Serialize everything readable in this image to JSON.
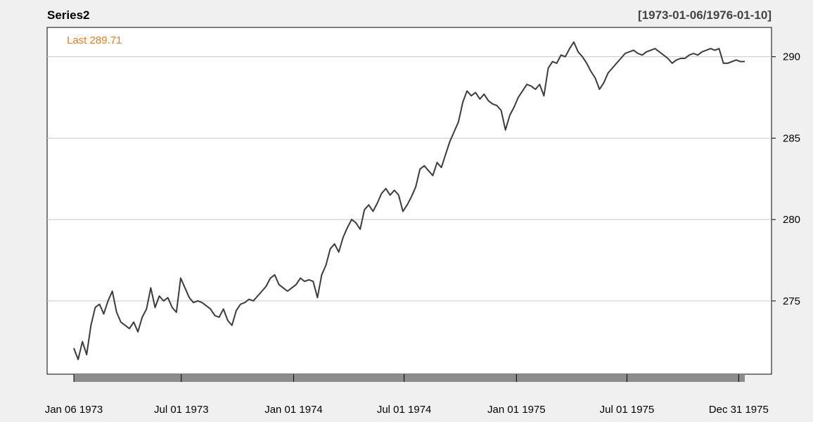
{
  "chart_data": {
    "type": "line",
    "title": "Series2",
    "date_range_label": "[1973-01-06/1976-01-10]",
    "last_label": "Last 289.71",
    "x_range": [
      "1973-01-06",
      "1976-01-10"
    ],
    "ylim": [
      270.5,
      291.8
    ],
    "yticks": [
      275,
      280,
      285,
      290
    ],
    "xticks": [
      {
        "date": "1973-01-06",
        "label": "Jan 06 1973"
      },
      {
        "date": "1973-07-01",
        "label": "Jul 01 1973"
      },
      {
        "date": "1974-01-01",
        "label": "Jan 01 1974"
      },
      {
        "date": "1974-07-01",
        "label": "Jul 01 1974"
      },
      {
        "date": "1975-01-01",
        "label": "Jan 01 1975"
      },
      {
        "date": "1975-07-01",
        "label": "Jul 01 1975"
      },
      {
        "date": "1975-12-31",
        "label": "Dec 31 1975"
      }
    ],
    "grid": "horizontal",
    "colors": {
      "line": "#3c3c3c",
      "last": "#e67e22",
      "grid": "#c8c8c8",
      "bar": "#8c8c8c"
    },
    "series": [
      {
        "values": [
          [
            "1973-01-06",
            272.1
          ],
          [
            "1973-01-13",
            271.4
          ],
          [
            "1973-01-20",
            272.5
          ],
          [
            "1973-01-27",
            271.7
          ],
          [
            "1973-02-03",
            273.5
          ],
          [
            "1973-02-10",
            274.6
          ],
          [
            "1973-02-17",
            274.8
          ],
          [
            "1973-02-24",
            274.2
          ],
          [
            "1973-03-03",
            275.0
          ],
          [
            "1973-03-10",
            275.6
          ],
          [
            "1973-03-17",
            274.3
          ],
          [
            "1973-03-24",
            273.7
          ],
          [
            "1973-03-31",
            273.5
          ],
          [
            "1973-04-07",
            273.3
          ],
          [
            "1973-04-14",
            273.7
          ],
          [
            "1973-04-21",
            273.1
          ],
          [
            "1973-04-28",
            274.0
          ],
          [
            "1973-05-05",
            274.5
          ],
          [
            "1973-05-12",
            275.8
          ],
          [
            "1973-05-19",
            274.6
          ],
          [
            "1973-05-26",
            275.3
          ],
          [
            "1973-06-02",
            275.0
          ],
          [
            "1973-06-09",
            275.2
          ],
          [
            "1973-06-16",
            274.6
          ],
          [
            "1973-06-23",
            274.3
          ],
          [
            "1973-06-30",
            276.4
          ],
          [
            "1973-07-07",
            275.8
          ],
          [
            "1973-07-14",
            275.2
          ],
          [
            "1973-07-21",
            274.9
          ],
          [
            "1973-07-28",
            275.0
          ],
          [
            "1973-08-04",
            274.9
          ],
          [
            "1973-08-11",
            274.7
          ],
          [
            "1973-08-18",
            274.5
          ],
          [
            "1973-08-25",
            274.1
          ],
          [
            "1973-09-01",
            274.0
          ],
          [
            "1973-09-08",
            274.5
          ],
          [
            "1973-09-15",
            273.8
          ],
          [
            "1973-09-22",
            273.5
          ],
          [
            "1973-09-29",
            274.4
          ],
          [
            "1973-10-06",
            274.8
          ],
          [
            "1973-10-13",
            274.9
          ],
          [
            "1973-10-20",
            275.1
          ],
          [
            "1973-10-27",
            275.0
          ],
          [
            "1973-11-03",
            275.3
          ],
          [
            "1973-11-10",
            275.6
          ],
          [
            "1973-11-17",
            275.9
          ],
          [
            "1973-11-24",
            276.4
          ],
          [
            "1973-12-01",
            276.6
          ],
          [
            "1973-12-08",
            276.0
          ],
          [
            "1973-12-15",
            275.8
          ],
          [
            "1973-12-22",
            275.6
          ],
          [
            "1973-12-29",
            275.8
          ],
          [
            "1974-01-05",
            276.0
          ],
          [
            "1974-01-12",
            276.4
          ],
          [
            "1974-01-19",
            276.2
          ],
          [
            "1974-01-26",
            276.3
          ],
          [
            "1974-02-02",
            276.2
          ],
          [
            "1974-02-09",
            275.2
          ],
          [
            "1974-02-16",
            276.6
          ],
          [
            "1974-02-23",
            277.2
          ],
          [
            "1974-03-02",
            278.2
          ],
          [
            "1974-03-09",
            278.5
          ],
          [
            "1974-03-16",
            278.0
          ],
          [
            "1974-03-23",
            278.9
          ],
          [
            "1974-03-30",
            279.5
          ],
          [
            "1974-04-06",
            280.0
          ],
          [
            "1974-04-13",
            279.8
          ],
          [
            "1974-04-20",
            279.4
          ],
          [
            "1974-04-27",
            280.6
          ],
          [
            "1974-05-04",
            280.9
          ],
          [
            "1974-05-11",
            280.5
          ],
          [
            "1974-05-18",
            281.0
          ],
          [
            "1974-05-25",
            281.6
          ],
          [
            "1974-06-01",
            281.9
          ],
          [
            "1974-06-08",
            281.5
          ],
          [
            "1974-06-15",
            281.8
          ],
          [
            "1974-06-22",
            281.5
          ],
          [
            "1974-06-29",
            280.5
          ],
          [
            "1974-07-06",
            280.9
          ],
          [
            "1974-07-13",
            281.4
          ],
          [
            "1974-07-20",
            282.0
          ],
          [
            "1974-07-27",
            283.1
          ],
          [
            "1974-08-03",
            283.3
          ],
          [
            "1974-08-10",
            283.0
          ],
          [
            "1974-08-17",
            282.7
          ],
          [
            "1974-08-24",
            283.5
          ],
          [
            "1974-08-31",
            283.2
          ],
          [
            "1974-09-07",
            284.0
          ],
          [
            "1974-09-14",
            284.8
          ],
          [
            "1974-09-21",
            285.4
          ],
          [
            "1974-09-28",
            286.0
          ],
          [
            "1974-10-05",
            287.2
          ],
          [
            "1974-10-12",
            287.9
          ],
          [
            "1974-10-19",
            287.6
          ],
          [
            "1974-10-26",
            287.8
          ],
          [
            "1974-11-02",
            287.4
          ],
          [
            "1974-11-09",
            287.7
          ],
          [
            "1974-11-16",
            287.3
          ],
          [
            "1974-11-23",
            287.1
          ],
          [
            "1974-11-30",
            287.0
          ],
          [
            "1974-12-07",
            286.7
          ],
          [
            "1974-12-14",
            285.5
          ],
          [
            "1974-12-21",
            286.4
          ],
          [
            "1974-12-28",
            286.9
          ],
          [
            "1975-01-04",
            287.5
          ],
          [
            "1975-01-11",
            287.9
          ],
          [
            "1975-01-18",
            288.3
          ],
          [
            "1975-01-25",
            288.2
          ],
          [
            "1975-02-01",
            288.0
          ],
          [
            "1975-02-08",
            288.3
          ],
          [
            "1975-02-15",
            287.6
          ],
          [
            "1975-02-22",
            289.3
          ],
          [
            "1975-03-01",
            289.7
          ],
          [
            "1975-03-08",
            289.6
          ],
          [
            "1975-03-15",
            290.1
          ],
          [
            "1975-03-22",
            290.0
          ],
          [
            "1975-03-29",
            290.5
          ],
          [
            "1975-04-05",
            290.9
          ],
          [
            "1975-04-12",
            290.3
          ],
          [
            "1975-04-19",
            290.0
          ],
          [
            "1975-04-26",
            289.6
          ],
          [
            "1975-05-03",
            289.1
          ],
          [
            "1975-05-10",
            288.7
          ],
          [
            "1975-05-17",
            288.0
          ],
          [
            "1975-05-24",
            288.4
          ],
          [
            "1975-05-31",
            289.0
          ],
          [
            "1975-06-07",
            289.3
          ],
          [
            "1975-06-14",
            289.6
          ],
          [
            "1975-06-21",
            289.9
          ],
          [
            "1975-06-28",
            290.2
          ],
          [
            "1975-07-05",
            290.3
          ],
          [
            "1975-07-12",
            290.4
          ],
          [
            "1975-07-19",
            290.2
          ],
          [
            "1975-07-26",
            290.1
          ],
          [
            "1975-08-02",
            290.3
          ],
          [
            "1975-08-09",
            290.4
          ],
          [
            "1975-08-16",
            290.5
          ],
          [
            "1975-08-23",
            290.3
          ],
          [
            "1975-08-30",
            290.1
          ],
          [
            "1975-09-06",
            289.9
          ],
          [
            "1975-09-13",
            289.6
          ],
          [
            "1975-09-20",
            289.8
          ],
          [
            "1975-09-27",
            289.9
          ],
          [
            "1975-10-04",
            289.9
          ],
          [
            "1975-10-11",
            290.1
          ],
          [
            "1975-10-18",
            290.2
          ],
          [
            "1975-10-25",
            290.1
          ],
          [
            "1975-11-01",
            290.3
          ],
          [
            "1975-11-08",
            290.4
          ],
          [
            "1975-11-15",
            290.5
          ],
          [
            "1975-11-22",
            290.4
          ],
          [
            "1975-11-29",
            290.5
          ],
          [
            "1975-12-06",
            289.6
          ],
          [
            "1975-12-13",
            289.6
          ],
          [
            "1975-12-20",
            289.7
          ],
          [
            "1975-12-27",
            289.8
          ],
          [
            "1976-01-03",
            289.7
          ],
          [
            "1976-01-10",
            289.71
          ]
        ]
      }
    ]
  }
}
